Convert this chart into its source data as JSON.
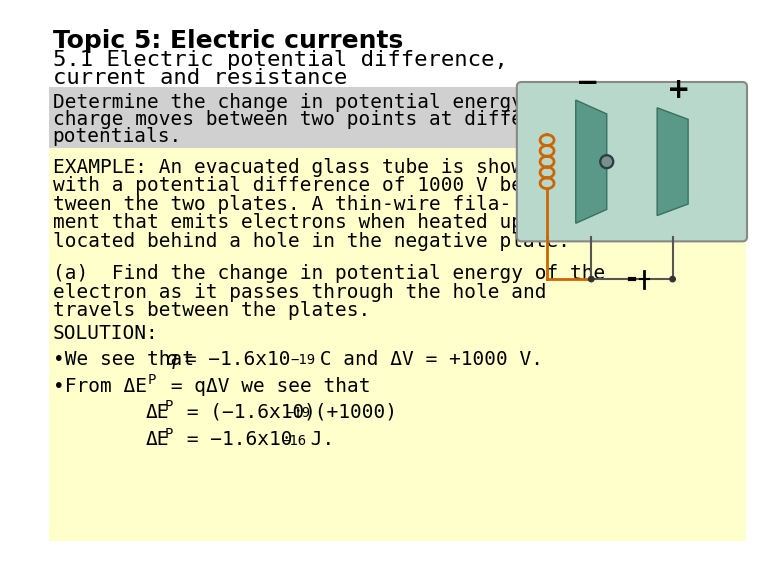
{
  "title_bold": "Topic 5: Electric currents",
  "subtitle_line1": "5.1 Electric potential difference,",
  "subtitle_line2": "current and resistance",
  "bg_color": "#ffffff",
  "gray_box_color": "#d0d0d0",
  "yellow_box_color": "#ffffcc",
  "gray_text_lines": [
    "Determine the change in potential energy when a",
    "charge moves between two points at different",
    "potentials."
  ],
  "example_lines": [
    "EXAMPLE: An evacuated glass tube is shown",
    "with a potential difference of 1000 V be-",
    "tween the two plates. A thin-wire fila-",
    "ment that emits electrons when heated up is",
    "located behind a hole in the negative plate."
  ],
  "part_a_lines": [
    "(a)  Find the change in potential energy of the",
    "electron as it passes through the hole and",
    "travels between the plates."
  ],
  "solution_label": "SOLUTION:",
  "bullet1_text": "•We see that q = −1.6x10",
  "bullet1_sup": "−19",
  "bullet1_end": " C and ΔV = +1000 V.",
  "bullet2_text": "•From ΔE",
  "bullet2_sub": "P",
  "bullet2_end": " = qΔV we see that",
  "eq1_main": "ΔE",
  "eq1_sub": "P",
  "eq1_end": " = (−1.6x10",
  "eq1_sup": "−19",
  "eq1_tail": ")(+1000)",
  "eq2_main": "ΔE",
  "eq2_sub": "P",
  "eq2_end": " = −1.6x10",
  "eq2_sup": "−16",
  "eq2_tail": " J.",
  "font_size": 15,
  "mono_font": "DejaVu Sans Mono",
  "sans_font": "DejaVu Sans",
  "diagram_bg": "#b8d8cc",
  "plate_color": "#5a9888",
  "plate_edge": "#3a7060",
  "coil_color": "#cc6600",
  "wire_color": "#555555"
}
